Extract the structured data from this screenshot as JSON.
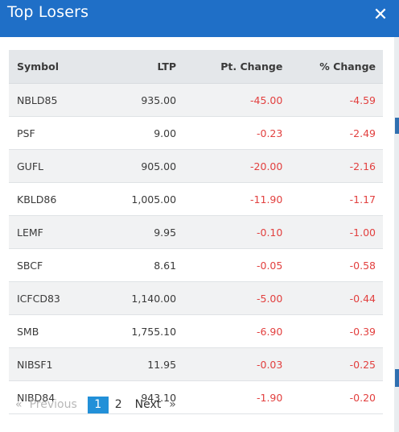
{
  "modal": {
    "title": "Top Losers",
    "close_icon": "close-icon"
  },
  "table": {
    "headers": [
      "Symbol",
      "LTP",
      "Pt. Change",
      "% Change"
    ],
    "rows": [
      {
        "symbol": "NBLD85",
        "ltp": "935.00",
        "pt_change": "-45.00",
        "pct_change": "-4.59"
      },
      {
        "symbol": "PSF",
        "ltp": "9.00",
        "pt_change": "-0.23",
        "pct_change": "-2.49"
      },
      {
        "symbol": "GUFL",
        "ltp": "905.00",
        "pt_change": "-20.00",
        "pct_change": "-2.16"
      },
      {
        "symbol": "KBLD86",
        "ltp": "1,005.00",
        "pt_change": "-11.90",
        "pct_change": "-1.17"
      },
      {
        "symbol": "LEMF",
        "ltp": "9.95",
        "pt_change": "-0.10",
        "pct_change": "-1.00"
      },
      {
        "symbol": "SBCF",
        "ltp": "8.61",
        "pt_change": "-0.05",
        "pct_change": "-0.58"
      },
      {
        "symbol": "ICFCD83",
        "ltp": "1,140.00",
        "pt_change": "-5.00",
        "pct_change": "-0.44"
      },
      {
        "symbol": "SMB",
        "ltp": "1,755.10",
        "pt_change": "-6.90",
        "pct_change": "-0.39"
      },
      {
        "symbol": "NIBSF1",
        "ltp": "11.95",
        "pt_change": "-0.03",
        "pct_change": "-0.25"
      },
      {
        "symbol": "NIBD84",
        "ltp": "943.10",
        "pt_change": "-1.90",
        "pct_change": "-0.20"
      }
    ]
  },
  "pagination": {
    "prev_arrow": "«",
    "prev_label": "Previous",
    "pages": [
      "1",
      "2"
    ],
    "current_page": "1",
    "next_label": "Next",
    "next_arrow": "»"
  },
  "colors": {
    "header_bg": "#1f6fc7",
    "negative": "#e2403f",
    "active_page": "#2290d8"
  }
}
